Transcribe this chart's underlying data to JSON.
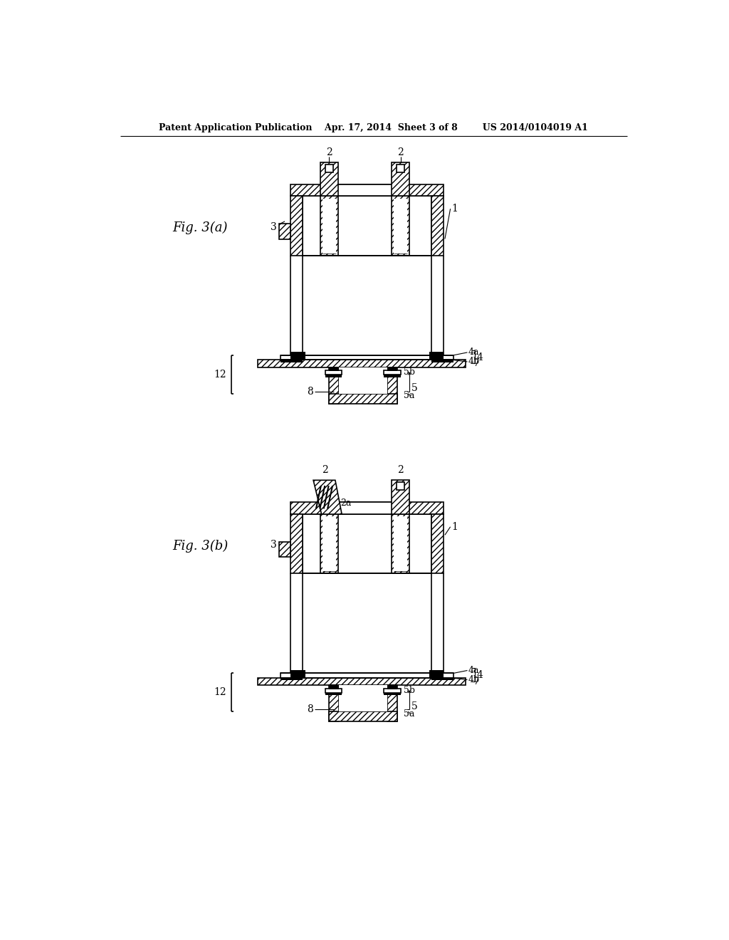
{
  "bg_color": "#ffffff",
  "line_color": "#000000",
  "hatch_color": "#000000",
  "black_fill": "#000000",
  "header_text": "Patent Application Publication    Apr. 17, 2014  Sheet 3 of 8        US 2014/0104019 A1",
  "fig_a_label": "Fig. 3(a)",
  "fig_b_label": "Fig. 3(b)",
  "lw": 1.2,
  "lw_thick": 1.5
}
